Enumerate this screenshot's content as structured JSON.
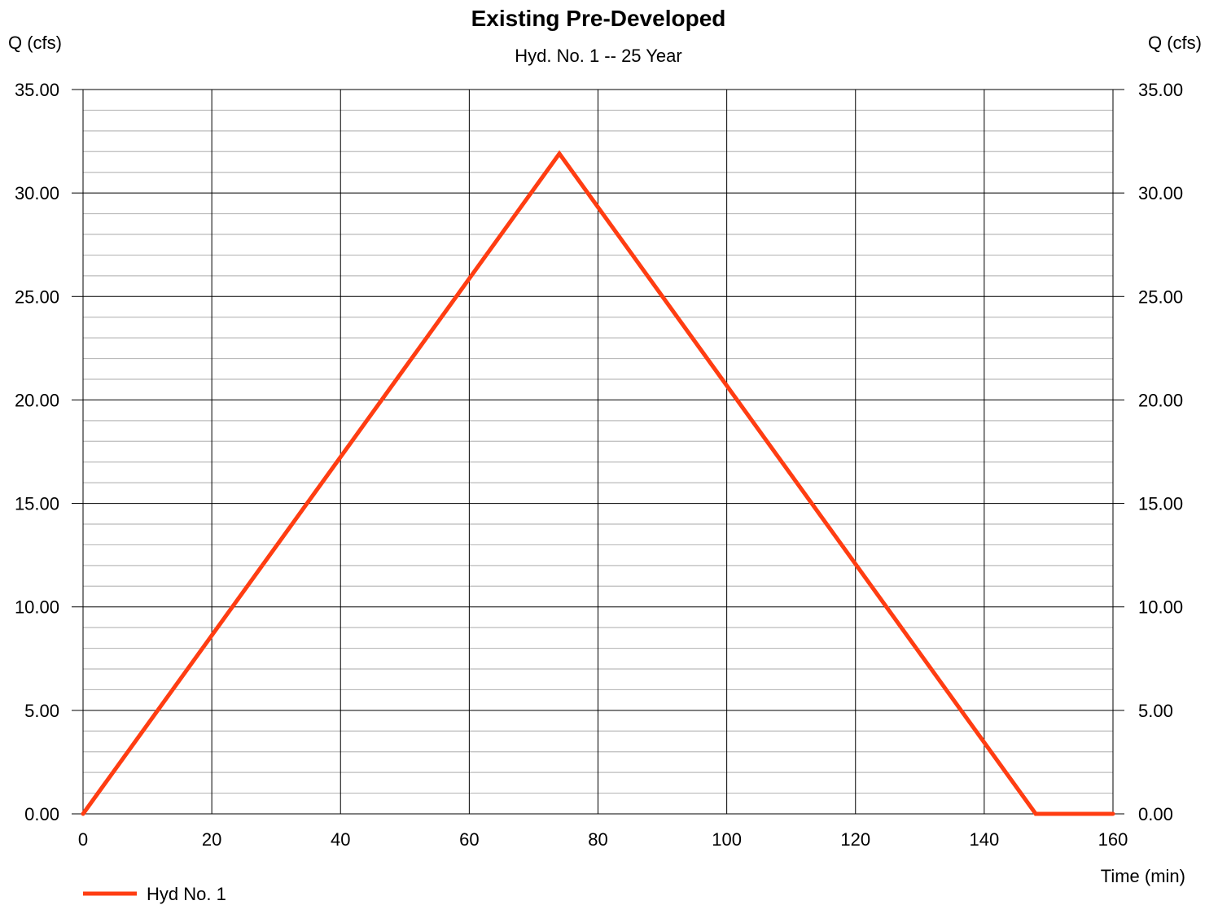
{
  "chart_data": {
    "type": "line",
    "title": "Existing Pre-Developed",
    "subtitle": "Hyd. No. 1 -- 25 Year",
    "ylabel_left": "Q (cfs)",
    "ylabel_right": "Q (cfs)",
    "xlabel": "Time (min)",
    "xlim": [
      0,
      160
    ],
    "ylim": [
      0,
      35
    ],
    "x_ticks": [
      0,
      20,
      40,
      60,
      80,
      100,
      120,
      140,
      160
    ],
    "x_tick_labels": [
      "0",
      "20",
      "40",
      "60",
      "80",
      "100",
      "120",
      "140",
      "160"
    ],
    "y_ticks": [
      0,
      5,
      10,
      15,
      20,
      25,
      30,
      35
    ],
    "y_tick_labels": [
      "0.00",
      "5.00",
      "10.00",
      "15.00",
      "20.00",
      "25.00",
      "30.00",
      "35.00"
    ],
    "y_minor_step": 1,
    "grid": true,
    "legend_position": "bottom-left",
    "series": [
      {
        "name": "Hyd No. 1",
        "color": "#ff3d12",
        "x": [
          0,
          74,
          148,
          160
        ],
        "y": [
          0,
          31.9,
          0,
          0
        ]
      }
    ]
  }
}
